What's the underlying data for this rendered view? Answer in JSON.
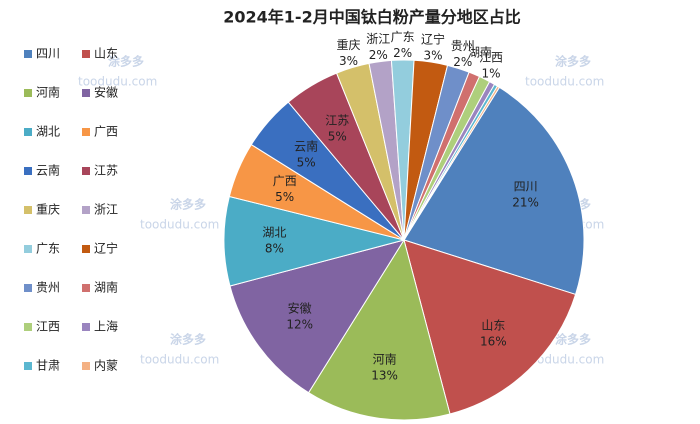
{
  "chart_data": {
    "type": "pie",
    "title": "2024年1-2月中国钛白粉产量分地区占比",
    "categories": [
      "四川",
      "山东",
      "河南",
      "安徽",
      "湖北",
      "广西",
      "云南",
      "江苏",
      "重庆",
      "浙江",
      "广东",
      "辽宁",
      "贵州",
      "湖南",
      "江西",
      "上海",
      "甘肃",
      "内蒙"
    ],
    "values": [
      21,
      16,
      13,
      12,
      8,
      5,
      5,
      5,
      3,
      2,
      2,
      3,
      2,
      1,
      1,
      0.5,
      0.3,
      0.2
    ],
    "value_labels": [
      "21%",
      "16%",
      "13%",
      "12%",
      "8%",
      "5%",
      "5%",
      "5%",
      "3%",
      "2%",
      "2%",
      "3%",
      "2%",
      null,
      "1%",
      null,
      null,
      null
    ],
    "colors": [
      "#4f81bd",
      "#c0504d",
      "#9bbb59",
      "#8064a2",
      "#4bacc6",
      "#f79646",
      "#3a6fc0",
      "#a8455a",
      "#d4c06a",
      "#b3a2c7",
      "#93cddd",
      "#c25a11",
      "#6f8fc9",
      "#d0706e",
      "#aecf7c",
      "#9a85bf",
      "#5bb7d0",
      "#f4b183"
    ],
    "legend": "left",
    "watermark": {
      "brand": "涂多多",
      "site": "toodudu.com"
    }
  }
}
